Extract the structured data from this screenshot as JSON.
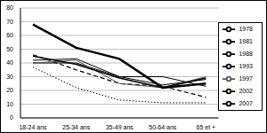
{
  "chart_data": {
    "type": "line",
    "categories": [
      "18-24 ans",
      "25-34 ans",
      "35-49 ans",
      "50-64 ans",
      "65 et +"
    ],
    "series": [
      {
        "name": "1978",
        "color": "#000000",
        "line_style": "dotted",
        "values": [
          37,
          22,
          13,
          11,
          11
        ]
      },
      {
        "name": "1981",
        "color": "#000000",
        "line_style": "dashed",
        "values": [
          46,
          35,
          25,
          23,
          15
        ]
      },
      {
        "name": "1988",
        "color": "#000000",
        "line_style": "solid",
        "values": [
          40,
          40,
          30,
          30,
          23
        ]
      },
      {
        "name": "1993",
        "color": "#000000",
        "line_style": "solid",
        "values": [
          42,
          43,
          30,
          24,
          28
        ]
      },
      {
        "name": "1997",
        "color": "#555555",
        "line_style": "solid",
        "values": [
          40,
          42,
          25,
          22,
          30
        ]
      },
      {
        "name": "2002",
        "color": "#000000",
        "line_style": "solid",
        "values": [
          68,
          51,
          43,
          22,
          25
        ]
      },
      {
        "name": "2007",
        "color": "#000000",
        "line_style": "solid",
        "values": [
          45,
          39,
          29,
          22,
          29
        ]
      }
    ],
    "ylim": [
      0,
      80
    ],
    "yticks": [
      0,
      10,
      20,
      30,
      40,
      50,
      60,
      70,
      80
    ],
    "grid": true,
    "legend": "right"
  }
}
